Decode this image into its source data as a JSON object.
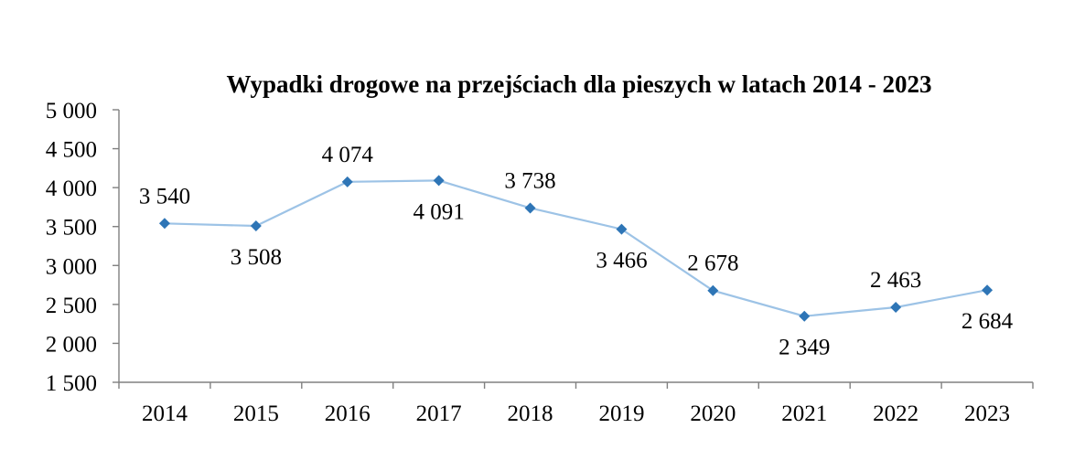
{
  "chart_data": {
    "type": "line",
    "title": "Wypadki drogowe na przejściach dla pieszych w latach 2014 - 2023",
    "xlabel": "",
    "ylabel": "",
    "categories": [
      "2014",
      "2015",
      "2016",
      "2017",
      "2018",
      "2019",
      "2020",
      "2021",
      "2022",
      "2023"
    ],
    "series": [
      {
        "values": [
          3540,
          3508,
          4074,
          4091,
          3738,
          3466,
          2678,
          2349,
          2463,
          2684
        ],
        "data_labels": [
          "3 540",
          "3 508",
          "4 074",
          "4 091",
          "3 738",
          "3 466",
          "2 678",
          "2 349",
          "2 463",
          "2 684"
        ],
        "label_positions": [
          "above",
          "below",
          "above",
          "below",
          "above",
          "below",
          "above",
          "below",
          "above",
          "below"
        ]
      }
    ],
    "ylim": [
      1500,
      5000
    ],
    "y_ticks": [
      5000,
      4500,
      4000,
      3500,
      3000,
      2500,
      2000,
      1500
    ],
    "y_tick_labels": [
      "5 000",
      "4 500",
      "4 000",
      "3 500",
      "3 000",
      "2 500",
      "2 000",
      "1 500"
    ],
    "grid": false,
    "legend": "none",
    "colors": {
      "line": "#9dc3e6",
      "marker": "#2e75b6",
      "axis": "#808080"
    }
  }
}
